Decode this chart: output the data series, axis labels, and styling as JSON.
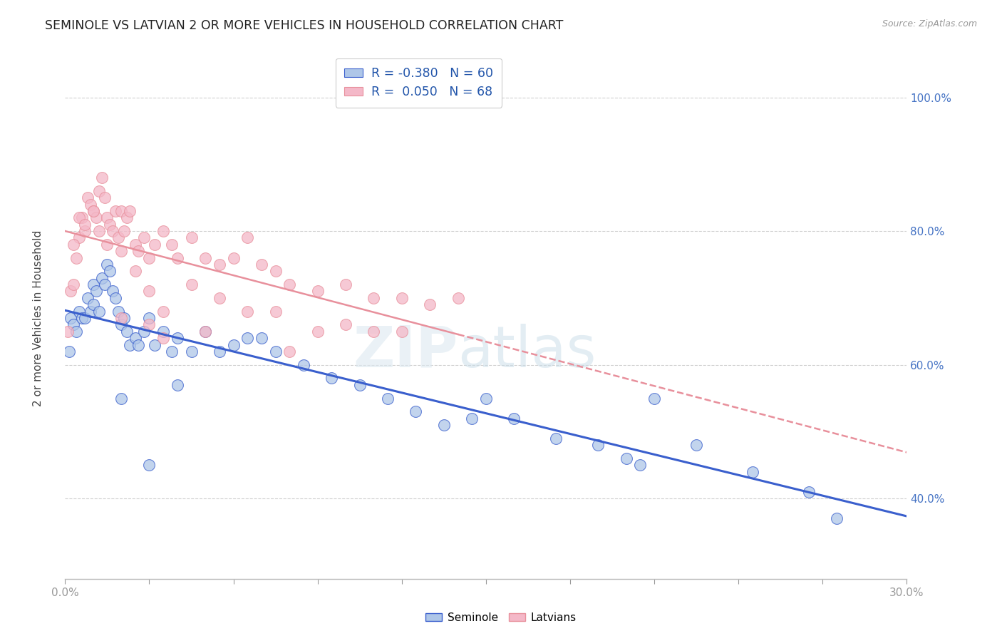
{
  "title": "SEMINOLE VS LATVIAN 2 OR MORE VEHICLES IN HOUSEHOLD CORRELATION CHART",
  "source": "Source: ZipAtlas.com",
  "ylabel": "2 or more Vehicles in Household",
  "seminole_R": -0.38,
  "seminole_N": 60,
  "latvian_R": 0.05,
  "latvian_N": 68,
  "seminole_color": "#aec6e8",
  "latvian_color": "#f4b8c8",
  "seminole_line_color": "#3a5fcd",
  "latvian_line_color": "#e8909c",
  "watermark_zip": "ZIP",
  "watermark_atlas": "atlas",
  "xlim": [
    0,
    30
  ],
  "ylim": [
    28,
    106
  ],
  "ytick_vals": [
    40,
    60,
    80,
    100
  ],
  "ytick_labels": [
    "40.0%",
    "60.0%",
    "80.0%",
    "100.0%"
  ],
  "seminole_x": [
    0.15,
    0.2,
    0.3,
    0.4,
    0.5,
    0.6,
    0.7,
    0.8,
    0.9,
    1.0,
    1.0,
    1.1,
    1.2,
    1.3,
    1.4,
    1.5,
    1.6,
    1.7,
    1.8,
    1.9,
    2.0,
    2.1,
    2.2,
    2.3,
    2.5,
    2.6,
    2.8,
    3.0,
    3.2,
    3.5,
    3.8,
    4.0,
    4.5,
    5.0,
    5.5,
    6.0,
    6.5,
    7.0,
    7.5,
    8.5,
    9.5,
    10.5,
    11.5,
    12.5,
    13.5,
    14.5,
    15.0,
    16.0,
    17.5,
    19.0,
    20.0,
    20.5,
    21.0,
    22.5,
    24.5,
    26.5,
    27.5,
    2.0,
    3.0,
    4.0
  ],
  "seminole_y": [
    62,
    67,
    66,
    65,
    68,
    67,
    67,
    70,
    68,
    69,
    72,
    71,
    68,
    73,
    72,
    75,
    74,
    71,
    70,
    68,
    66,
    67,
    65,
    63,
    64,
    63,
    65,
    67,
    63,
    65,
    62,
    64,
    62,
    65,
    62,
    63,
    64,
    64,
    62,
    60,
    58,
    57,
    55,
    53,
    51,
    52,
    55,
    52,
    49,
    48,
    46,
    45,
    55,
    48,
    44,
    41,
    37,
    55,
    45,
    57
  ],
  "latvian_x": [
    0.1,
    0.2,
    0.3,
    0.4,
    0.5,
    0.6,
    0.7,
    0.8,
    0.9,
    1.0,
    1.1,
    1.2,
    1.3,
    1.4,
    1.5,
    1.6,
    1.7,
    1.8,
    1.9,
    2.0,
    2.1,
    2.2,
    2.3,
    2.5,
    2.6,
    2.8,
    3.0,
    3.2,
    3.5,
    3.8,
    4.0,
    4.5,
    5.0,
    5.5,
    6.0,
    6.5,
    7.0,
    7.5,
    8.0,
    9.0,
    10.0,
    11.0,
    12.0,
    13.0,
    14.0,
    0.3,
    0.5,
    0.7,
    1.0,
    1.2,
    1.5,
    2.0,
    2.5,
    3.0,
    3.5,
    4.5,
    5.5,
    7.5,
    9.0,
    11.0,
    2.0,
    3.0,
    3.5,
    5.0,
    6.5,
    8.0,
    10.0,
    12.0
  ],
  "latvian_y": [
    65,
    71,
    72,
    76,
    79,
    82,
    80,
    85,
    84,
    83,
    82,
    86,
    88,
    85,
    82,
    81,
    80,
    83,
    79,
    83,
    80,
    82,
    83,
    78,
    77,
    79,
    76,
    78,
    80,
    78,
    76,
    79,
    76,
    75,
    76,
    79,
    75,
    74,
    72,
    71,
    72,
    70,
    70,
    69,
    70,
    78,
    82,
    81,
    83,
    80,
    78,
    77,
    74,
    71,
    68,
    72,
    70,
    68,
    65,
    65,
    67,
    66,
    64,
    65,
    68,
    62,
    66,
    65
  ]
}
